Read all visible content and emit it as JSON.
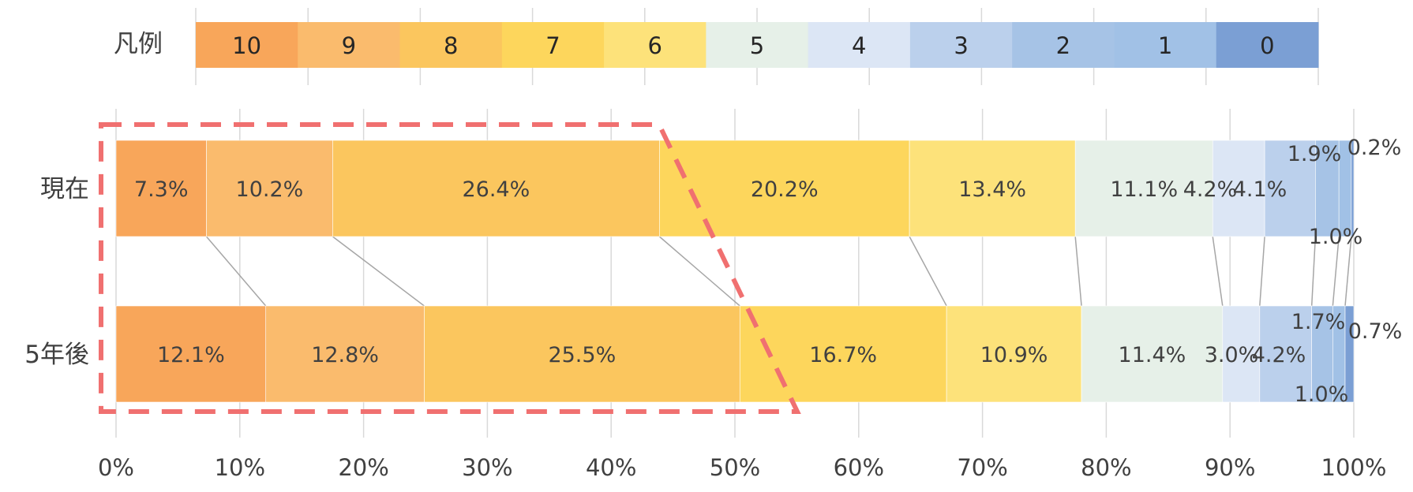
{
  "chart_data": {
    "type": "bar",
    "orientation": "horizontal",
    "stacked": "percent",
    "categories": [
      "現在",
      "5年後"
    ],
    "series": [
      {
        "name": "10",
        "color": "#F8A65A",
        "values": [
          7.3,
          12.1
        ]
      },
      {
        "name": "9",
        "color": "#FABB6D",
        "values": [
          10.2,
          12.8
        ]
      },
      {
        "name": "8",
        "color": "#FBC65E",
        "values": [
          26.4,
          25.5
        ]
      },
      {
        "name": "7",
        "color": "#FDD65C",
        "values": [
          20.2,
          16.7
        ]
      },
      {
        "name": "6",
        "color": "#FDE27A",
        "values": [
          13.4,
          10.9
        ]
      },
      {
        "name": "5",
        "color": "#E6F0E8",
        "values": [
          11.1,
          11.4
        ]
      },
      {
        "name": "4",
        "color": "#DCE6F5",
        "values": [
          4.2,
          3.0
        ]
      },
      {
        "name": "3",
        "color": "#BBD0EC",
        "values": [
          4.1,
          4.2
        ]
      },
      {
        "name": "2",
        "color": "#A6C3E6",
        "values": [
          1.9,
          1.7
        ]
      },
      {
        "name": "1",
        "color": "#A1C1E6",
        "values": [
          1.0,
          1.0
        ]
      },
      {
        "name": "0",
        "color": "#7B9FD4",
        "values": [
          0.2,
          0.7
        ]
      }
    ],
    "data_labels": [
      [
        "7.3%",
        "10.2%",
        "26.4%",
        "20.2%",
        "13.4%",
        "11.1%",
        "4.2%",
        "4.1%",
        "1.9%",
        "1.0%",
        "0.2%"
      ],
      [
        "12.1%",
        "12.8%",
        "25.5%",
        "16.7%",
        "10.9%",
        "11.4%",
        "3.0%",
        "4.2%",
        "1.7%",
        "1.0%",
        "0.7%"
      ]
    ],
    "xlim": [
      0,
      100
    ],
    "x_ticks": [
      "0%",
      "10%",
      "20%",
      "30%",
      "40%",
      "50%",
      "60%",
      "70%",
      "80%",
      "90%",
      "100%"
    ],
    "grid": true,
    "series_connector_lines": true,
    "legend": {
      "title": "凡例",
      "placement": "top"
    },
    "annotation": {
      "shape": "dashed outline",
      "color": "#F07070",
      "covers_series": [
        "10",
        "9",
        "8"
      ]
    }
  }
}
